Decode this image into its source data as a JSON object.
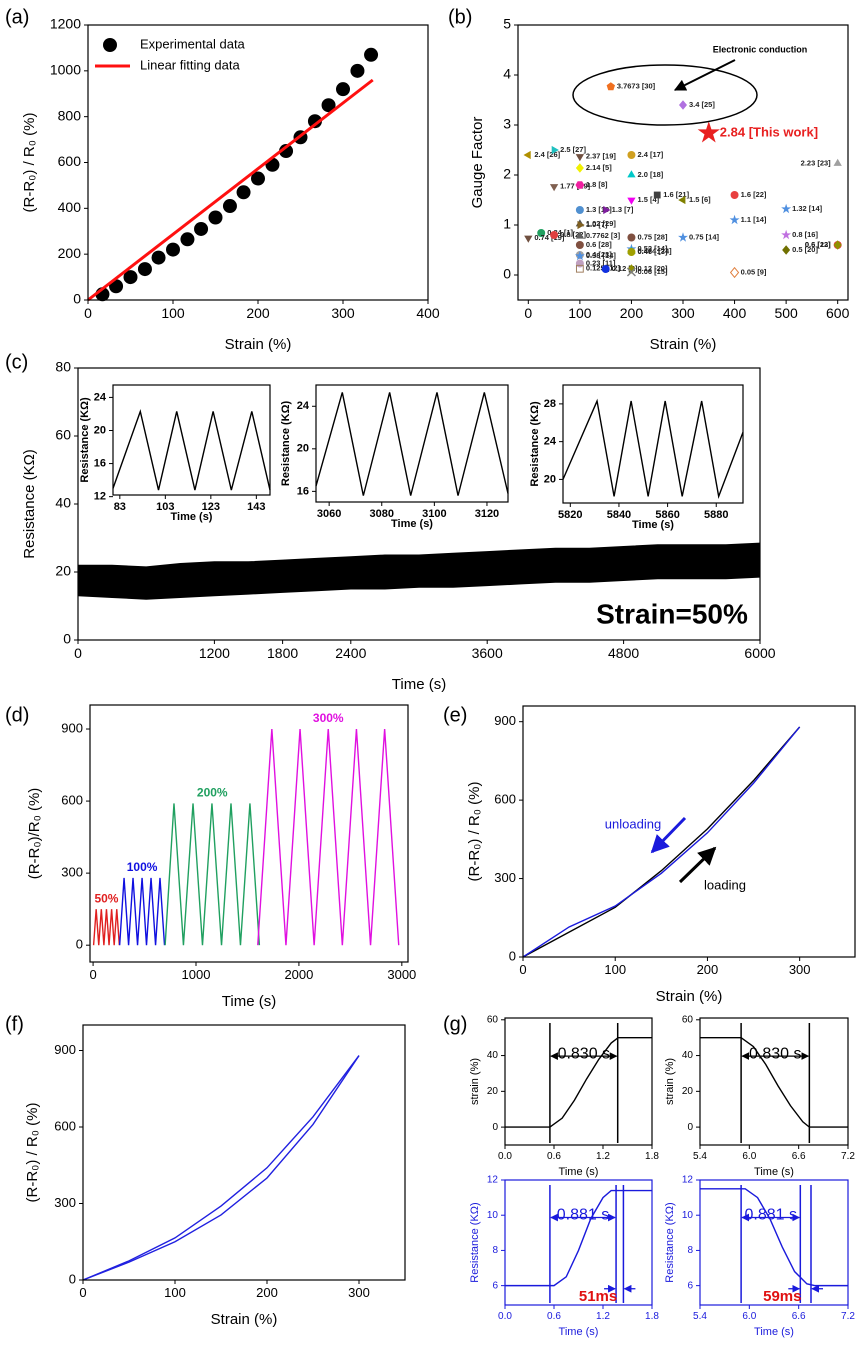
{
  "chart_data": [
    {
      "type": "scatter",
      "panel": "(a)",
      "xlabel": "Strain (%)",
      "ylabel": "(R-R₀) / R₀ (%)",
      "xlim": [
        0,
        400
      ],
      "xticks": [
        0,
        100,
        200,
        300,
        400
      ],
      "ylim": [
        0,
        1200
      ],
      "yticks": [
        0,
        200,
        400,
        600,
        800,
        1000,
        1200
      ],
      "legend": "upper left",
      "series": [
        {
          "name": "Experimental data",
          "mode": "markers",
          "color": "#000000",
          "x": [
            17,
            33,
            50,
            67,
            83,
            100,
            117,
            133,
            150,
            167,
            183,
            200,
            217,
            233,
            250,
            267,
            283,
            300,
            317,
            333
          ],
          "values": [
            25,
            60,
            100,
            135,
            185,
            220,
            265,
            310,
            360,
            410,
            470,
            530,
            590,
            650,
            710,
            780,
            850,
            920,
            1000,
            1070
          ]
        },
        {
          "name": "Linear fitting data",
          "mode": "line",
          "color": "#ff1010",
          "x": [
            0,
            335
          ],
          "values": [
            0,
            960
          ]
        }
      ]
    },
    {
      "type": "scatter",
      "panel": "(b)",
      "xlabel": "Strain (%)",
      "ylabel": "Gauge Factor",
      "annotation": "Electronic conduction",
      "xlim": [
        -20,
        620
      ],
      "xticks": [
        0,
        100,
        200,
        300,
        400,
        500,
        600
      ],
      "ylim": [
        -0.5,
        5
      ],
      "yticks": [
        0,
        1,
        2,
        3,
        4,
        5
      ],
      "highlight": 2,
      "x": [
        160,
        300,
        350,
        0,
        50,
        100,
        200,
        100,
        200,
        600,
        50,
        100,
        200,
        250,
        300,
        400,
        500,
        100,
        150,
        400,
        100,
        100,
        25,
        0,
        50,
        100,
        200,
        300,
        500,
        600,
        100,
        200,
        200,
        500,
        600,
        100,
        200,
        100,
        100,
        100,
        150,
        200,
        200,
        400
      ],
      "series": [
        {
          "values": [
            3.7673,
            3.4,
            2.84,
            2.4,
            2.5,
            2.37,
            2.4,
            2.14,
            2.0,
            2.23,
            1.77,
            1.8,
            1.5,
            1.6,
            1.5,
            1.6,
            1.32,
            1.3,
            1.3,
            1.1,
            1.02,
            1.0,
            0.84,
            0.74,
            0.8,
            0.7762,
            0.75,
            0.75,
            0.8,
            0.6,
            0.6,
            0.52,
            0.474,
            0.5,
            0.6,
            0.4,
            0.46,
            0.38,
            0.23,
            0.125,
            0.12,
            0.12,
            0.06,
            0.05
          ],
          "value_labels": [
            "3.7673 [30]",
            "3.4 [25]",
            "2.84 [This work]",
            "2.4 [26]",
            "2.5 [27]",
            "2.37 [19]",
            "2.4 [17]",
            "2.14 [5]",
            "2.0 [18]",
            "2.23 [23]",
            "1.77 [19]",
            "1.8 [8]",
            "1.5 [4]",
            "1.6 [21]",
            "1.5 [6]",
            "1.6 [22]",
            "1.32 [14]",
            "1.3 [10]",
            "1.3 [7]",
            "1.1 [14]",
            "1.02 [29]",
            "1.0 [7]",
            "0.84 [1]",
            "0.74 [19]",
            "0.8 [22]",
            "0.7762 [3]",
            "0.75 [28]",
            "0.75 [14]",
            "0.8 [16]",
            "0.6 [22]",
            "0.6 [28]",
            "0.52 [14]",
            "0.474 [24]",
            "0.5 [20]",
            "0.6 [13]",
            "0.4 [23]",
            "0.46 [13]",
            "0.38 [14]",
            "0.23 [11]",
            "0.125 [12]",
            "0.12 [2]",
            "0.12 [20]",
            "0.06 [15]",
            "0.05 [9]"
          ],
          "colors": [
            "#f07020",
            "#b070e0",
            "#e82020",
            "#b09000",
            "#20c0c0",
            "#705040",
            "#d0a020",
            "#f0f000",
            "#00c8c8",
            "#a0a0a0",
            "#806050",
            "#f020a0",
            "#f000f0",
            "#404040",
            "#808000",
            "#e84040",
            "#5090e0",
            "#5090d0",
            "#8020a0",
            "#5090e0",
            "#505050",
            "#806020",
            "#20a060",
            "#705040",
            "#e04040",
            "#606060",
            "#805040",
            "#5090e0",
            "#c070e0",
            "#e04040",
            "#805040",
            "#5090e0",
            "#20b0b0",
            "#707000",
            "#909000",
            "#a0a0a0",
            "#a0a000",
            "#5090e0",
            "#c0a0c0",
            "#a08060",
            "#1030e0",
            "#909000",
            "#808080",
            "#e08040"
          ],
          "markers": [
            "pentagon",
            "diamond",
            "star",
            "tri-left",
            "tri-right",
            "tri-down",
            "circle",
            "diamond",
            "tri-up",
            "tri-up",
            "tri-down",
            "hexagon",
            "tri-down",
            "square",
            "tri-left",
            "circle",
            "star",
            "circle",
            "tri-right",
            "star",
            "tri-up",
            "tri-right",
            "circle",
            "tri-down",
            "circle",
            "tri-up",
            "circle",
            "star",
            "star",
            "circle",
            "circle",
            "star",
            "tri-up",
            "diamond",
            "diamond",
            "circle",
            "circle",
            "star",
            "circle",
            "square-open",
            "circle",
            "diamond",
            "cross",
            "diamond-open"
          ]
        }
      ]
    },
    {
      "type": "band",
      "panel": "(c)",
      "xlabel": "Time (s)",
      "ylabel": "Resistance (KΩ)",
      "annotation": "Strain=50%",
      "color": "#000000",
      "xlim": [
        0,
        6000
      ],
      "xticks": [
        0,
        1200,
        1800,
        2400,
        3600,
        4800,
        6000
      ],
      "ylim": [
        0,
        80
      ],
      "yticks": [
        0,
        20,
        40,
        60,
        80
      ],
      "x": [
        0,
        300,
        600,
        900,
        1200,
        1500,
        1800,
        2100,
        2400,
        2700,
        3000,
        3300,
        3600,
        3900,
        4200,
        4500,
        4800,
        5100,
        5400,
        5700,
        6000
      ],
      "series": [
        {
          "values": [
            13,
            12.5,
            12,
            12.5,
            13,
            13.5,
            14,
            14.5,
            15,
            15,
            15.5,
            15.5,
            16,
            16.5,
            17,
            17,
            17.5,
            18,
            18,
            18,
            18.5
          ]
        },
        {
          "values": [
            22,
            22,
            21.5,
            22.5,
            23,
            23,
            23.5,
            24,
            24.5,
            25,
            25,
            25.5,
            26,
            26.5,
            27,
            27,
            27.5,
            28,
            28,
            28,
            28.5
          ]
        }
      ],
      "insets": [
        {
          "type": "line",
          "xlabel": "Time (s)",
          "ylabel": "Resistance (KΩ)",
          "xlim": [
            80,
            149
          ],
          "xticks": [
            83,
            103,
            123,
            143
          ],
          "ylim": [
            12.2,
            25.5
          ],
          "yticks": [
            12,
            16,
            20,
            24
          ],
          "x": [
            80,
            92,
            100,
            108,
            116,
            124,
            132,
            141,
            149
          ],
          "series": [
            {
              "color": "#000000",
              "values": [
                13,
                22.3,
                12.8,
                22.3,
                12.8,
                22.3,
                12.8,
                22.3,
                12.8
              ]
            }
          ]
        },
        {
          "type": "line",
          "xlabel": "Time (s)",
          "ylabel": "Resistance (KΩ)",
          "xlim": [
            3055,
            3128
          ],
          "xticks": [
            3060,
            3080,
            3100,
            3120
          ],
          "ylim": [
            15,
            26
          ],
          "yticks": [
            16,
            20,
            24
          ],
          "x": [
            3055,
            3065,
            3073,
            3083,
            3091,
            3101,
            3109,
            3119,
            3128
          ],
          "series": [
            {
              "color": "#000000",
              "values": [
                16.5,
                25.3,
                15.6,
                25.3,
                15.6,
                25.3,
                15.6,
                25.3,
                15.8
              ]
            }
          ]
        },
        {
          "type": "line",
          "xlabel": "Time (s)",
          "ylabel": "Resistance (KΩ)",
          "xlim": [
            5817,
            5891
          ],
          "xticks": [
            5820,
            5840,
            5860,
            5880
          ],
          "ylim": [
            17.5,
            30
          ],
          "yticks": [
            20,
            24,
            28
          ],
          "x": [
            5817,
            5831,
            5838,
            5845,
            5852,
            5859,
            5866,
            5874,
            5881,
            5891
          ],
          "series": [
            {
              "color": "#000000",
              "values": [
                20,
                28.3,
                18.2,
                28.3,
                18.2,
                28.3,
                18.2,
                28.3,
                18.2,
                25
              ]
            }
          ]
        }
      ]
    },
    {
      "type": "line",
      "panel": "(d)",
      "xlabel": "Time (s)",
      "ylabel": "(R-R₀)/R₀ (%)",
      "series_labels": "inline",
      "xlim": [
        -30,
        3060
      ],
      "xticks": [
        0,
        1000,
        2000,
        3000
      ],
      "ylim": [
        -70,
        1000
      ],
      "yticks": [
        0,
        300,
        600,
        900
      ],
      "series": [
        {
          "name": "50%",
          "color": "#e02020",
          "x": [
            5,
            30,
            55,
            80,
            105,
            130,
            155,
            180,
            205,
            230,
            255
          ],
          "values": [
            0,
            150,
            0,
            150,
            0,
            150,
            0,
            150,
            0,
            150,
            0
          ]
        },
        {
          "name": "100%",
          "color": "#1010e0",
          "x": [
            258,
            301,
            345,
            388,
            432,
            476,
            519,
            563,
            607,
            650,
            694
          ],
          "values": [
            0,
            280,
            0,
            280,
            0,
            280,
            0,
            280,
            0,
            280,
            0
          ]
        },
        {
          "name": "200%",
          "color": "#20a060",
          "x": [
            700,
            786,
            878,
            971,
            1063,
            1155,
            1248,
            1340,
            1432,
            1524,
            1616
          ],
          "values": [
            0,
            590,
            0,
            590,
            0,
            590,
            0,
            590,
            0,
            590,
            0
          ]
        },
        {
          "name": "300%",
          "color": "#e010e0",
          "x": [
            1600,
            1737,
            1874,
            2011,
            2148,
            2285,
            2422,
            2559,
            2696,
            2833,
            2970
          ],
          "values": [
            0,
            900,
            0,
            900,
            0,
            900,
            0,
            900,
            0,
            900,
            0
          ]
        }
      ]
    },
    {
      "type": "line",
      "panel": "(e)",
      "xlabel": "Strain (%)",
      "ylabel": "(R-R₀) / R₀ (%)",
      "series_labels": "arrows",
      "xlim": [
        0,
        360
      ],
      "xticks": [
        0,
        100,
        200,
        300
      ],
      "ylim": [
        0,
        960
      ],
      "yticks": [
        0,
        300,
        600,
        900
      ],
      "x": [
        0,
        50,
        100,
        150,
        200,
        250,
        300
      ],
      "series": [
        {
          "name": "loading",
          "color": "#000000",
          "values": [
            0,
            95,
            190,
            330,
            490,
            675,
            880
          ]
        },
        {
          "name": "unloading",
          "color": "#1a1adc",
          "values": [
            0,
            115,
            195,
            320,
            475,
            665,
            880
          ]
        }
      ]
    },
    {
      "type": "line",
      "panel": "(f)",
      "xlabel": "Strain (%)",
      "ylabel": "(R-R₀) / R₀ (%)",
      "xlim": [
        0,
        350
      ],
      "xticks": [
        0,
        100,
        200,
        300
      ],
      "ylim": [
        0,
        1000
      ],
      "yticks": [
        0,
        300,
        600,
        900
      ],
      "x": [
        0,
        50,
        100,
        150,
        200,
        250,
        300
      ],
      "series": [
        {
          "color": "#2020e0",
          "values": [
            0,
            75,
            165,
            290,
            440,
            640,
            880
          ]
        },
        {
          "color": "#2020e0",
          "values": [
            0,
            70,
            150,
            255,
            400,
            610,
            880
          ]
        }
      ]
    },
    {
      "type": "line",
      "panel": "(g)",
      "xlabel": "Time (s)",
      "ylabel": "strain (%)",
      "annotations": [
        "0.830 s"
      ],
      "xlim": [
        0,
        1.8
      ],
      "xticks": [
        {
          "value": 0,
          "label": "0.0"
        },
        0.6,
        1.2,
        1.8
      ],
      "ylim": [
        -10,
        61
      ],
      "yticks": [
        0,
        20,
        40,
        60
      ],
      "vlines": [
        0.55,
        1.38
      ],
      "x": [
        0,
        0.55,
        0.7,
        0.85,
        1.0,
        1.15,
        1.3,
        1.385,
        1.8
      ],
      "series": [
        {
          "color": "#000000",
          "values": [
            0,
            0,
            5,
            15,
            27,
            38,
            47,
            50,
            50
          ]
        }
      ]
    },
    {
      "type": "line",
      "xlabel": "Time (s)",
      "ylabel": "strain (%)",
      "annotations": [
        "0.830 s"
      ],
      "xlim": [
        5.4,
        7.2
      ],
      "xticks": [
        5.4,
        {
          "value": 6,
          "label": "6.0"
        },
        6.6,
        7.2
      ],
      "ylim": [
        -10,
        61
      ],
      "yticks": [
        0,
        20,
        40,
        60
      ],
      "vlines": [
        5.9,
        6.73
      ],
      "x": [
        5.4,
        5.9,
        6.05,
        6.2,
        6.35,
        6.5,
        6.65,
        6.73,
        7.2
      ],
      "series": [
        {
          "color": "#000000",
          "values": [
            50,
            50,
            45,
            35,
            23,
            12,
            3,
            0,
            0
          ]
        }
      ]
    },
    {
      "type": "line",
      "xlabel": "Time (s)",
      "ylabel": "Resistance (KΩ)",
      "annotations": [
        "0.881 s",
        "51ms"
      ],
      "axis_color": "#1a1adc",
      "xlim": [
        0,
        1.8
      ],
      "xticks": [
        {
          "value": 0,
          "label": "0.0"
        },
        0.6,
        1.2,
        1.8
      ],
      "ylim": [
        4.9,
        12
      ],
      "yticks": [
        6,
        8,
        10,
        12
      ],
      "vlines": [
        0.55,
        1.36,
        1.45
      ],
      "x": [
        0,
        0.6,
        0.75,
        0.9,
        1.05,
        1.2,
        1.3,
        1.45,
        1.8
      ],
      "series": [
        {
          "color": "#1a1adc",
          "values": [
            6,
            6,
            6.5,
            8,
            9.8,
            11,
            11.4,
            11.4,
            11.4
          ]
        }
      ]
    },
    {
      "type": "line",
      "xlabel": "Time (s)",
      "ylabel": "Resistance (KΩ)",
      "annotations": [
        "0.881 s",
        "59ms"
      ],
      "axis_color": "#1a1adc",
      "xlim": [
        5.4,
        7.2
      ],
      "xticks": [
        5.4,
        {
          "value": 6,
          "label": "6.0"
        },
        6.6,
        7.2
      ],
      "ylim": [
        4.9,
        12
      ],
      "yticks": [
        6,
        8,
        10,
        12
      ],
      "vlines": [
        5.9,
        6.62,
        6.75
      ],
      "x": [
        5.4,
        5.95,
        6.1,
        6.25,
        6.4,
        6.55,
        6.7,
        6.8,
        7.2
      ],
      "series": [
        {
          "color": "#1a1adc",
          "values": [
            11.5,
            11.5,
            11,
            9.8,
            8.2,
            6.8,
            6.1,
            6,
            6
          ]
        }
      ]
    }
  ]
}
